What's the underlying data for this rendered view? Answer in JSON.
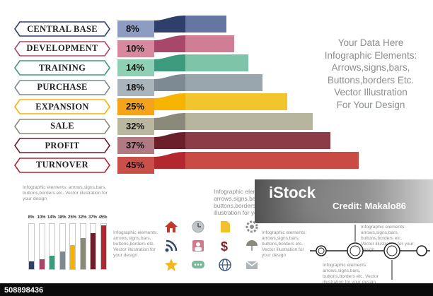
{
  "chart_data": {
    "type": "bar",
    "categories": [
      "CENTRAL BASE",
      "DEVELOPMENT",
      "TRAINING",
      "PURCHASE",
      "EXPANSION",
      "SALE",
      "PROFIT",
      "TURNOVER"
    ],
    "values": [
      8,
      10,
      14,
      18,
      25,
      32,
      37,
      45
    ],
    "value_labels": [
      "8%",
      "10%",
      "14%",
      "18%",
      "25%",
      "32%",
      "37%",
      "45%"
    ],
    "colors": [
      "#2f3f6b",
      "#a7476a",
      "#3e9a7c",
      "#7d8a93",
      "#f6b400",
      "#8b8a7a",
      "#6a1f2b",
      "#b3272e"
    ],
    "bar_colors": [
      "#6676a3",
      "#cf7e95",
      "#7ec4a8",
      "#9aa6ad",
      "#f3c52c",
      "#b8b59f",
      "#8b3c47",
      "#c94b44"
    ],
    "pct_colors": [
      "#8e9cc4",
      "#d889a0",
      "#8fd0b4",
      "#aab5bb",
      "#f6a31c",
      "#bab7a1",
      "#b07a82",
      "#c9504a"
    ]
  },
  "side_text": [
    "Your Data Here",
    "Infographic Elements:",
    "Arrows,signs,bars,",
    "Buttons,borders Etc.",
    "Vector Illustration",
    "For Your Design"
  ],
  "small_text_1": "Infographic elements: arrows,signs,bars, buttons,borders etc. Vector illustration for your design",
  "small_text_2": "Infographic elements: arrows,signs,bars, buttons,borders etc. Vector illustration for your design",
  "small_text_3": "Infographic elements: arrows,signs,bars, buttons,borders etc. Vector illustration for your design",
  "small_text_4": "Infographic elements: arrows,signs,bars, buttons,borders etc. Vector illustration for your design",
  "small_text_5": "Infographic elements: arrows,signs,bars, buttons,borders etc. Vector illustration for your design",
  "mini_chart": {
    "labels": [
      "8%",
      "10%",
      "14%",
      "18%",
      "25%",
      "32%",
      "37%",
      "45%"
    ],
    "values": [
      8,
      10,
      14,
      18,
      25,
      32,
      37,
      45
    ],
    "colors": [
      "#2f3f6b",
      "#a7476a",
      "#3e9a7c",
      "#7d8a93",
      "#f6b400",
      "#8b8a7a",
      "#6a1f2b",
      "#b3272e"
    ]
  },
  "icons": [
    "home-icon",
    "clock-icon",
    "document-icon",
    "gear-icon",
    "rss-icon",
    "user-icon",
    "dollar-icon",
    "umbrella-icon",
    "star-icon",
    "chat-icon",
    "globe-icon",
    "mail-icon"
  ],
  "watermark": {
    "id": "508898436",
    "brand": "iStock",
    "credit": "Credit: Makalo86"
  }
}
